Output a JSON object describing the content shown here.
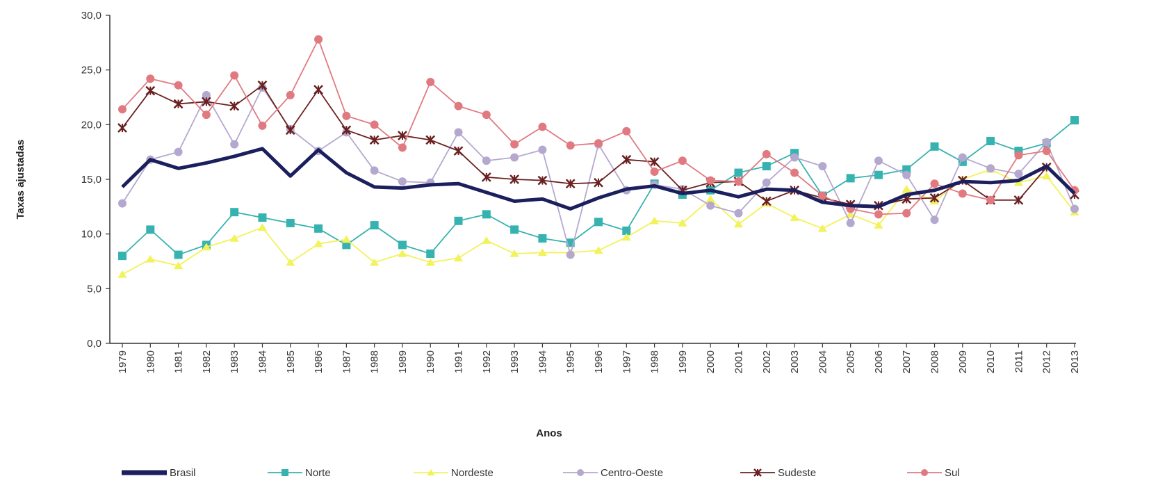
{
  "chart_data": {
    "type": "line",
    "xlabel": "Anos",
    "ylabel": "Taxas ajustadas",
    "ylim": [
      0,
      30
    ],
    "yticks": [
      "0,0",
      "5,0",
      "10,0",
      "15,0",
      "20,0",
      "25,0",
      "30,0"
    ],
    "legend_position": "bottom",
    "grid": false,
    "categories": [
      "1979",
      "1980",
      "1981",
      "1982",
      "1983",
      "1984",
      "1985",
      "1986",
      "1987",
      "1988",
      "1989",
      "1990",
      "1991",
      "1992",
      "1993",
      "1994",
      "1995",
      "1996",
      "1997",
      "1998",
      "1999",
      "2000",
      "2001",
      "2002",
      "2003",
      "2004",
      "2005",
      "2006",
      "2007",
      "2008",
      "2009",
      "2010",
      "2011",
      "2012",
      "2013"
    ],
    "series": [
      {
        "name": "Brasil",
        "color": "#1b1f5e",
        "marker": "none",
        "values": [
          14.3,
          16.8,
          16.0,
          16.5,
          17.1,
          17.8,
          15.3,
          17.7,
          15.6,
          14.3,
          14.2,
          14.5,
          14.6,
          13.8,
          13.0,
          13.2,
          12.3,
          13.3,
          14.1,
          14.4,
          13.7,
          14.0,
          13.4,
          14.1,
          14.0,
          12.9,
          12.6,
          12.5,
          13.6,
          14.0,
          14.8,
          14.7,
          14.9,
          16.2,
          13.7
        ]
      },
      {
        "name": "Norte",
        "color": "#36b3b0",
        "marker": "square",
        "values": [
          8.0,
          10.4,
          8.1,
          9.0,
          12.0,
          11.5,
          11.0,
          10.5,
          9.0,
          10.8,
          9.0,
          8.2,
          11.2,
          11.8,
          10.4,
          9.6,
          9.2,
          11.1,
          10.3,
          14.6,
          13.6,
          14.0,
          15.6,
          16.2,
          17.4,
          13.5,
          15.1,
          15.4,
          15.9,
          18.0,
          16.6,
          18.5,
          17.6,
          18.3,
          20.4
        ]
      },
      {
        "name": "Nordeste",
        "color": "#f2f25a",
        "marker": "triangle",
        "values": [
          6.3,
          7.7,
          7.1,
          8.8,
          9.6,
          10.6,
          7.4,
          9.1,
          9.5,
          7.4,
          8.2,
          7.4,
          7.8,
          9.4,
          8.2,
          8.3,
          8.3,
          8.5,
          9.7,
          11.2,
          11.0,
          13.2,
          10.9,
          12.8,
          11.5,
          10.5,
          11.8,
          10.8,
          14.1,
          13.0,
          15.0,
          15.9,
          14.7,
          15.3,
          12.0
        ]
      },
      {
        "name": "Centro-Oeste",
        "color": "#b5a8cf",
        "marker": "circle",
        "values": [
          12.8,
          16.8,
          17.5,
          22.7,
          18.2,
          23.4,
          19.6,
          17.6,
          19.3,
          15.8,
          14.8,
          14.7,
          19.3,
          16.7,
          17.0,
          17.7,
          8.1,
          18.2,
          14.0,
          14.5,
          14.1,
          12.6,
          11.9,
          14.7,
          17.0,
          16.2,
          11.0,
          16.7,
          15.4,
          11.3,
          17.0,
          16.0,
          15.5,
          18.4,
          12.3
        ]
      },
      {
        "name": "Sudeste",
        "color": "#6a2020",
        "marker": "star",
        "values": [
          19.7,
          23.1,
          21.9,
          22.1,
          21.7,
          23.6,
          19.5,
          23.2,
          19.5,
          18.6,
          19.0,
          18.6,
          17.6,
          15.2,
          15.0,
          14.9,
          14.6,
          14.7,
          16.8,
          16.6,
          14.0,
          14.7,
          14.8,
          13.0,
          14.0,
          13.3,
          12.7,
          12.6,
          13.2,
          13.3,
          14.9,
          13.1,
          13.1,
          16.1,
          13.6
        ]
      },
      {
        "name": "Sul",
        "color": "#e07a80",
        "marker": "circle",
        "values": [
          21.4,
          24.2,
          23.6,
          20.9,
          24.5,
          19.9,
          22.7,
          27.8,
          20.8,
          20.0,
          17.9,
          23.9,
          21.7,
          20.9,
          18.2,
          19.8,
          18.1,
          18.3,
          19.4,
          15.7,
          16.7,
          14.9,
          14.8,
          17.3,
          15.6,
          13.5,
          12.3,
          11.8,
          11.9,
          14.6,
          13.7,
          13.1,
          17.2,
          17.6,
          14.0
        ]
      }
    ]
  }
}
